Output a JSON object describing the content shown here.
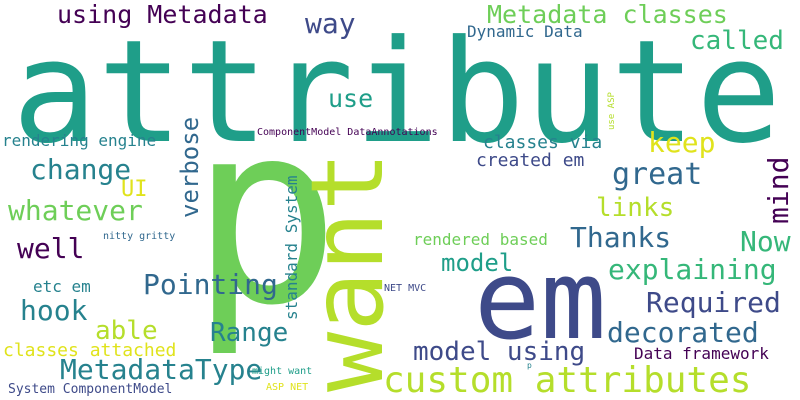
{
  "colors": {
    "background": "#ffffff",
    "dark_purple": "#440154",
    "indigo": "#3e4a89",
    "blue": "#31688e",
    "teal": "#26828e",
    "sea_green": "#1f9e89",
    "green": "#35b779",
    "light_green": "#6ece58",
    "lime": "#b5de2b",
    "yellow": "#e0e31c"
  },
  "words": {
    "attribute": "attribute",
    "p": "p",
    "want": "want",
    "em": "em",
    "custom_attributes": "custom attributes",
    "using_metadata": "using Metadata",
    "way": "way",
    "metadata_classes": "Metadata classes",
    "dynamic_data": "Dynamic Data",
    "called": "called",
    "use": "use",
    "verbose": "verbose",
    "componentmodel_dataannotations": "ComponentModel DataAnnotations",
    "use_asp": "use ASP",
    "rendering_engine": "rendering engine",
    "classes_via": "classes via",
    "keep": "keep",
    "change": "change",
    "created_em": "created em",
    "mind": "mind",
    "ui": "UI",
    "great": "great",
    "whatever": "whatever",
    "links": "links",
    "thanks": "Thanks",
    "now": "Now",
    "well": "well",
    "rendered_based": "rendered based",
    "standard_system": "standard System",
    "nitty_gritty": "nitty gritty",
    "model": "model",
    "explaining": "explaining",
    "etc_em": "etc em",
    "pointing": "Pointing",
    "net_mvc": "NET MVC",
    "required": "Required",
    "hook": "hook",
    "able": "able",
    "range": "Range",
    "decorated": "decorated",
    "model_using": "model using",
    "classes_attached": "classes attached",
    "metadatatype": "MetadataType",
    "data_framework": "Data framework",
    "might_want": "might want",
    "p_small": "p",
    "system_componentmodel": "System ComponentModel",
    "asp_net": "ASP NET"
  }
}
